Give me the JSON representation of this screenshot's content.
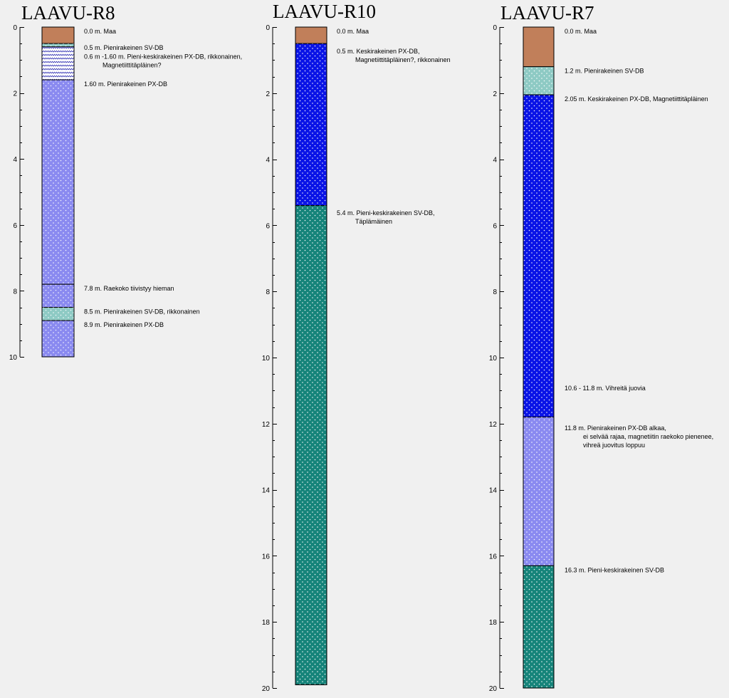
{
  "colors": {
    "background": "#f0f0f0",
    "maa": "#c17f5a",
    "sv_db": "#8ecac4",
    "px_db_fine": "#8a8af0",
    "px_db_medium": "#0a14e6",
    "sv_db_medium": "#16847a",
    "px_db_broken": "#ffffff"
  },
  "logs": [
    {
      "title": "LAAVU-R8",
      "depth_max": 10,
      "ticks": [
        "0",
        "2",
        "4",
        "6",
        "8",
        "10"
      ],
      "layers": [
        {
          "top": 0.0,
          "bottom": 0.5,
          "fill": "maa",
          "pattern": "none"
        },
        {
          "top": 0.5,
          "bottom": 0.6,
          "fill": "sv_db",
          "pattern": "dots"
        },
        {
          "top": 0.6,
          "bottom": 1.6,
          "fill": "px_db_broken",
          "pattern": "waves"
        },
        {
          "top": 1.6,
          "bottom": 7.8,
          "fill": "px_db_fine",
          "pattern": "dots"
        },
        {
          "top": 7.8,
          "bottom": 8.5,
          "fill": "px_db_fine",
          "pattern": "dots"
        },
        {
          "top": 8.5,
          "bottom": 8.9,
          "fill": "sv_db",
          "pattern": "dots"
        },
        {
          "top": 8.9,
          "bottom": 10.0,
          "fill": "px_db_fine",
          "pattern": "dots"
        }
      ],
      "labels": [
        {
          "depth": 0.0,
          "lines": [
            "0.0 m. Maa"
          ]
        },
        {
          "depth": 0.5,
          "lines": [
            "0.5 m. Pienirakeinen SV-DB"
          ]
        },
        {
          "depth": 0.77,
          "lines": [
            "0.6 m -1.60 m. Pieni-keskirakeinen PX-DB, rikkonainen,",
            "Magnetiittitäpläinen?"
          ]
        },
        {
          "depth": 1.6,
          "lines": [
            "1.60 m. Pienirakeinen PX-DB"
          ]
        },
        {
          "depth": 7.8,
          "lines": [
            "7.8 m. Raekoko tiivistyy hieman"
          ]
        },
        {
          "depth": 8.5,
          "lines": [
            "8.5 m. Pienirakeinen SV-DB, rikkonainen"
          ]
        },
        {
          "depth": 8.9,
          "lines": [
            "8.9 m. Pienirakeinen PX-DB"
          ]
        }
      ]
    },
    {
      "title": "LAAVU-R10",
      "depth_max": 20,
      "ticks": [
        "0",
        "2",
        "4",
        "6",
        "8",
        "10",
        "12",
        "14",
        "16",
        "18",
        "20"
      ],
      "layers": [
        {
          "top": 0.0,
          "bottom": 0.5,
          "fill": "maa",
          "pattern": "none"
        },
        {
          "top": 0.5,
          "bottom": 5.4,
          "fill": "px_db_medium",
          "pattern": "dots"
        },
        {
          "top": 5.4,
          "bottom": 19.9,
          "fill": "sv_db_medium",
          "pattern": "dots"
        }
      ],
      "labels": [
        {
          "depth": 0.0,
          "lines": [
            "0.0 m. Maa"
          ]
        },
        {
          "depth": 0.6,
          "lines": [
            "0.5 m. Keskirakeinen PX-DB,",
            "Magnetiittitäpläinen?, rikkonainen"
          ]
        },
        {
          "depth": 5.5,
          "lines": [
            "5.4 m. Pieni-keskirakeinen SV-DB,",
            "Täplämäinen"
          ]
        }
      ]
    },
    {
      "title": "LAAVU-R7",
      "depth_max": 20,
      "ticks": [
        "0",
        "2",
        "4",
        "6",
        "8",
        "10",
        "12",
        "14",
        "16",
        "18",
        "20"
      ],
      "layers": [
        {
          "top": 0.0,
          "bottom": 1.2,
          "fill": "maa",
          "pattern": "none"
        },
        {
          "top": 1.2,
          "bottom": 2.05,
          "fill": "sv_db",
          "pattern": "dots"
        },
        {
          "top": 2.05,
          "bottom": 11.8,
          "fill": "px_db_medium",
          "pattern": "dots"
        },
        {
          "top": 11.8,
          "bottom": 16.3,
          "fill": "px_db_fine",
          "pattern": "dots"
        },
        {
          "top": 16.3,
          "bottom": 20.0,
          "fill": "sv_db_medium",
          "pattern": "dots"
        }
      ],
      "labels": [
        {
          "depth": 0.0,
          "lines": [
            "0.0 m. Maa"
          ]
        },
        {
          "depth": 1.2,
          "lines": [
            "1.2 m. Pienirakeinen SV-DB"
          ]
        },
        {
          "depth": 2.05,
          "lines": [
            "2.05 m. Keskirakeinen PX-DB, Magnetiittitäpläinen"
          ]
        },
        {
          "depth": 10.8,
          "lines": [
            "10.6 - 11.8 m. Vihreitä juovia"
          ]
        },
        {
          "depth": 12.0,
          "lines": [
            "11.8 m. Pienirakeinen PX-DB alkaa,",
            "ei selvää rajaa, magnetiitin raekoko pienenee,",
            "vihreä juovitus loppuu"
          ]
        },
        {
          "depth": 16.3,
          "lines": [
            "16.3 m. Pieni-keskirakeinen SV-DB"
          ]
        }
      ]
    }
  ]
}
